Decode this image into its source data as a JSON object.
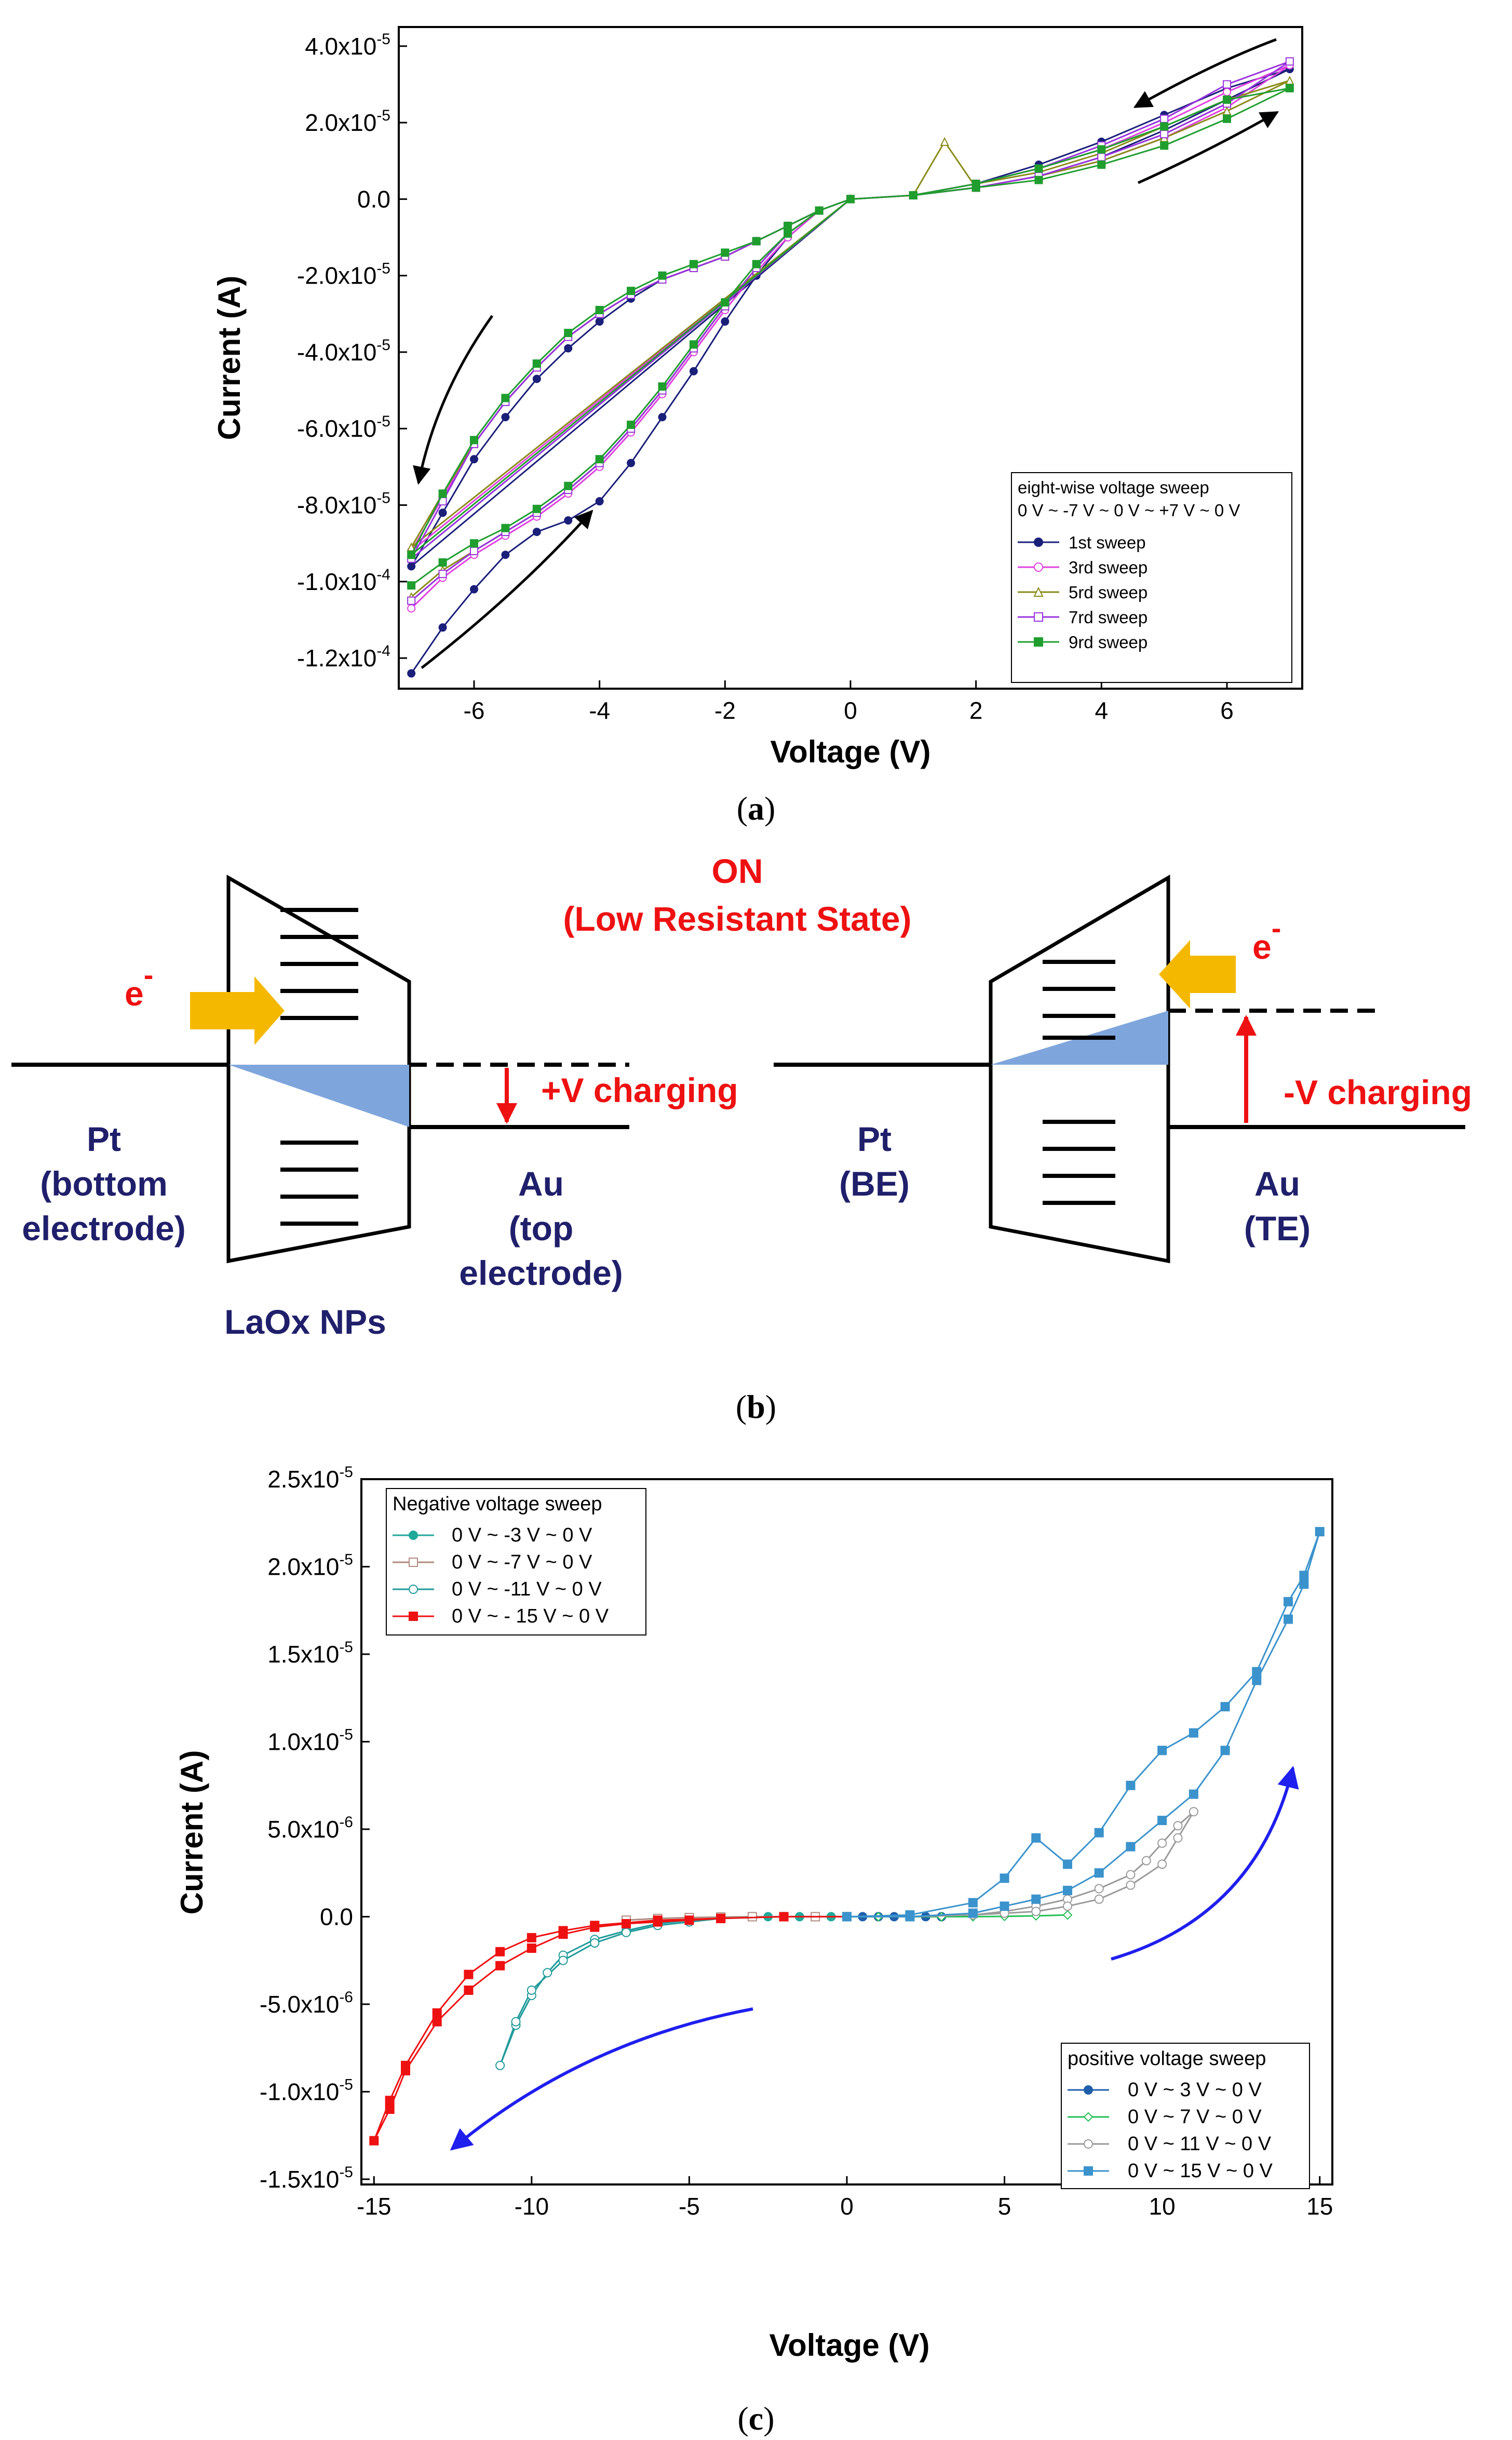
{
  "panel_a": {
    "label_open": "(",
    "label_letter": "a",
    "label_close": ")",
    "legend": {
      "title": "eight-wise voltage sweep",
      "subtitle": "0 V ~ -7 V ~ 0 V ~ +7 V ~ 0 V"
    }
  },
  "panel_b": {
    "label_open": "(",
    "label_letter": "b",
    "label_close": ")",
    "on_line1": "ON",
    "on_line2": "(Low Resistant State)",
    "electron": "e",
    "electron_sup": "-",
    "left": {
      "pt": "Pt",
      "pt_line2": "(bottom",
      "pt_line3": "electrode)",
      "au": "Au",
      "au_line2": "(top",
      "au_line3": "electrode)",
      "charging": "+V charging",
      "nps": "LaOx NPs"
    },
    "right": {
      "pt": "Pt",
      "pt_line2": "(BE)",
      "au": "Au",
      "au_line2": "(TE)",
      "charging": "-V charging"
    },
    "colors": {
      "arrow": "#F5B800",
      "fill": "#7FA6DC",
      "red": "#EE1111",
      "navy": "#1F1F6B"
    }
  },
  "panel_c": {
    "label_open": "(",
    "label_letter": "c",
    "label_close": ")",
    "legend_neg_title": "Negative voltage sweep",
    "legend_pos_title": "positive voltage sweep"
  },
  "chart_data": [
    {
      "type": "line",
      "title": "",
      "xlabel": "Voltage (V)",
      "ylabel": "Current (A)",
      "xlim": [
        -7.2,
        7.2
      ],
      "ylim": [
        -0.000128,
        4.5e-05
      ],
      "xticks": [
        -6,
        -4,
        -2,
        0,
        2,
        4,
        6
      ],
      "xtick_labels": [
        "-6",
        "-4",
        "-2",
        "0",
        "2",
        "4",
        "6"
      ],
      "yticks": [
        4e-05,
        2e-05,
        0,
        -2e-05,
        -4e-05,
        -6e-05,
        -8e-05,
        -0.0001,
        -0.00012
      ],
      "ytick_labels": [
        {
          "base": "4.0x10",
          "exp": "-5"
        },
        {
          "base": "2.0x10",
          "exp": "-5"
        },
        {
          "base": "0.0",
          "exp": ""
        },
        {
          "base": "-2.0x10",
          "exp": "-5"
        },
        {
          "base": "-4.0x10",
          "exp": "-5"
        },
        {
          "base": "-6.0x10",
          "exp": "-5"
        },
        {
          "base": "-8.0x10",
          "exp": "-5"
        },
        {
          "base": "-1.0x10",
          "exp": "-4"
        },
        {
          "base": "-1.2x10",
          "exp": "-4"
        }
      ],
      "legend_position": "bottom-right",
      "series": [
        {
          "name": "1st sweep",
          "color": "#1A1F7A",
          "marker": "filled-circle",
          "x": [
            -7,
            -6.5,
            -6,
            -5.5,
            -5,
            -4.5,
            -4,
            -3.5,
            -3,
            -2.5,
            -2,
            -1.5,
            -1,
            -0.5,
            0,
            -0.5,
            -1,
            -1.5,
            -2,
            -2.5,
            -3,
            -3.5,
            -4,
            -4.5,
            -5,
            -5.5,
            -6,
            -6.5,
            -7,
            0,
            1,
            2,
            3,
            4,
            5,
            6,
            7,
            6,
            5,
            4,
            3,
            2,
            1,
            0
          ],
          "y": [
            -0.000124,
            -0.000112,
            -0.000102,
            -9.3e-05,
            -8.7e-05,
            -8.4e-05,
            -7.9e-05,
            -6.9e-05,
            -5.7e-05,
            -4.5e-05,
            -3.2e-05,
            -2e-05,
            -1e-05,
            -3e-06,
            0,
            -3e-06,
            -7e-06,
            -1.1e-05,
            -1.5e-05,
            -1.8e-05,
            -2.1e-05,
            -2.6e-05,
            -3.2e-05,
            -3.9e-05,
            -4.7e-05,
            -5.7e-05,
            -6.8e-05,
            -8.2e-05,
            -9.6e-05,
            0,
            1e-06,
            3e-06,
            6e-06,
            1.1e-05,
            1.8e-05,
            2.6e-05,
            3.4e-05,
            2.9e-05,
            2.2e-05,
            1.5e-05,
            9e-06,
            4e-06,
            1e-06,
            0
          ]
        },
        {
          "name": "3rd sweep",
          "color": "#E040E0",
          "marker": "open-circle",
          "x": [
            -7,
            -6.5,
            -6,
            -5.5,
            -5,
            -4.5,
            -4,
            -3.5,
            -3,
            -2.5,
            -2,
            -1.5,
            -1,
            -0.5,
            0,
            -0.5,
            -1,
            -1.5,
            -2,
            -2.5,
            -3,
            -3.5,
            -4,
            -4.5,
            -5,
            -5.5,
            -6,
            -6.5,
            -7,
            0,
            1,
            2,
            3,
            4,
            5,
            6,
            7,
            6,
            5,
            4,
            3,
            2,
            1,
            0
          ],
          "y": [
            -0.000107,
            -9.9e-05,
            -9.3e-05,
            -8.8e-05,
            -8.3e-05,
            -7.7e-05,
            -7e-05,
            -6.1e-05,
            -5.1e-05,
            -4e-05,
            -2.9e-05,
            -1.9e-05,
            -1e-05,
            -3e-06,
            0,
            -3e-06,
            -7e-06,
            -1.1e-05,
            -1.5e-05,
            -1.8e-05,
            -2.1e-05,
            -2.5e-05,
            -3e-05,
            -3.6e-05,
            -4.4e-05,
            -5.3e-05,
            -6.4e-05,
            -7.8e-05,
            -9.2e-05,
            0,
            1e-06,
            3e-06,
            6e-06,
            1e-05,
            1.6e-05,
            2.4e-05,
            3.5e-05,
            2.8e-05,
            2e-05,
            1.3e-05,
            8e-06,
            4e-06,
            1e-06,
            0
          ]
        },
        {
          "name": "5rd sweep",
          "color": "#8B8B1A",
          "marker": "open-triangle",
          "x": [
            -7,
            -6.5,
            -6,
            -5.5,
            -5,
            -4.5,
            -4,
            -3.5,
            -3,
            -2.5,
            -2,
            -1.5,
            -1,
            -0.5,
            0,
            -0.5,
            -1,
            -1.5,
            -2,
            -2.5,
            -3,
            -3.5,
            -4,
            -4.5,
            -5,
            -5.5,
            -6,
            -6.5,
            -7,
            0,
            1,
            1.5,
            2,
            3,
            4,
            5,
            6,
            7,
            6,
            5,
            4,
            3,
            2,
            1,
            0
          ],
          "y": [
            -0.000104,
            -9.7e-05,
            -9.2e-05,
            -8.7e-05,
            -8.2e-05,
            -7.6e-05,
            -6.9e-05,
            -6e-05,
            -5e-05,
            -3.9e-05,
            -2.8e-05,
            -1.8e-05,
            -9e-06,
            -3e-06,
            0,
            -3e-06,
            -7e-06,
            -1.1e-05,
            -1.5e-05,
            -1.8e-05,
            -2.1e-05,
            -2.5e-05,
            -3e-05,
            -3.6e-05,
            -4.4e-05,
            -5.3e-05,
            -6.4e-05,
            -7.7e-05,
            -9.1e-05,
            0,
            1e-06,
            1.5e-05,
            3e-06,
            6e-06,
            1e-05,
            1.6e-05,
            2.3e-05,
            3.1e-05,
            2.6e-05,
            1.9e-05,
            1.2e-05,
            7e-06,
            4e-06,
            1e-06,
            0
          ]
        },
        {
          "name": "7rd sweep",
          "color": "#9933DD",
          "marker": "open-square",
          "x": [
            -7,
            -6.5,
            -6,
            -5.5,
            -5,
            -4.5,
            -4,
            -3.5,
            -3,
            -2.5,
            -2,
            -1.5,
            -1,
            -0.5,
            0,
            -0.5,
            -1,
            -1.5,
            -2,
            -2.5,
            -3,
            -3.5,
            -4,
            -4.5,
            -5,
            -5.5,
            -6,
            -6.5,
            -7,
            0,
            1,
            2,
            3,
            4,
            5,
            6,
            7,
            6,
            5,
            4,
            3,
            2,
            1,
            0
          ],
          "y": [
            -0.000105,
            -9.8e-05,
            -9.2e-05,
            -8.7e-05,
            -8.2e-05,
            -7.6e-05,
            -6.9e-05,
            -6e-05,
            -5e-05,
            -3.9e-05,
            -2.8e-05,
            -1.8e-05,
            -9e-06,
            -3e-06,
            0,
            -3e-06,
            -7e-06,
            -1.1e-05,
            -1.5e-05,
            -1.8e-05,
            -2.1e-05,
            -2.5e-05,
            -3e-05,
            -3.6e-05,
            -4.4e-05,
            -5.3e-05,
            -6.4e-05,
            -7.9e-05,
            -9.4e-05,
            0,
            1e-06,
            3e-06,
            6e-06,
            1.1e-05,
            1.7e-05,
            2.5e-05,
            3.6e-05,
            3e-05,
            2.1e-05,
            1.4e-05,
            8e-06,
            4e-06,
            1e-06,
            0
          ]
        },
        {
          "name": "9rd sweep",
          "color": "#1F9E2E",
          "marker": "filled-square",
          "x": [
            -7,
            -6.5,
            -6,
            -5.5,
            -5,
            -4.5,
            -4,
            -3.5,
            -3,
            -2.5,
            -2,
            -1.5,
            -1,
            -0.5,
            0,
            -0.5,
            -1,
            -1.5,
            -2,
            -2.5,
            -3,
            -3.5,
            -4,
            -4.5,
            -5,
            -5.5,
            -6,
            -6.5,
            -7,
            0,
            1,
            2,
            3,
            4,
            5,
            6,
            7,
            6,
            5,
            4,
            3,
            2,
            1,
            0
          ],
          "y": [
            -0.000101,
            -9.5e-05,
            -9e-05,
            -8.6e-05,
            -8.1e-05,
            -7.5e-05,
            -6.8e-05,
            -5.9e-05,
            -4.9e-05,
            -3.8e-05,
            -2.7e-05,
            -1.7e-05,
            -9e-06,
            -3e-06,
            0,
            -3e-06,
            -7e-06,
            -1.1e-05,
            -1.4e-05,
            -1.7e-05,
            -2e-05,
            -2.4e-05,
            -2.9e-05,
            -3.5e-05,
            -4.3e-05,
            -5.2e-05,
            -6.3e-05,
            -7.7e-05,
            -9.3e-05,
            0,
            1e-06,
            3e-06,
            5e-06,
            9e-06,
            1.4e-05,
            2.1e-05,
            2.9e-05,
            2.6e-05,
            1.9e-05,
            1.3e-05,
            8e-06,
            4e-06,
            1e-06,
            0
          ]
        }
      ]
    },
    {
      "type": "scatter",
      "title": "",
      "xlabel": "Voltage (V)",
      "ylabel": "Current (A)",
      "xlim": [
        -15.4,
        15.4
      ],
      "ylim": [
        -1.53e-05,
        2.5e-05
      ],
      "xticks": [
        -15,
        -10,
        -5,
        0,
        5,
        10,
        15
      ],
      "xtick_labels": [
        "-15",
        "-10",
        "-5",
        "0",
        "5",
        "10",
        "15"
      ],
      "yticks": [
        2.5e-05,
        2e-05,
        1.5e-05,
        1e-05,
        5e-06,
        0,
        -5e-06,
        -1e-05,
        -1.5e-05
      ],
      "ytick_labels": [
        {
          "base": "2.5x10",
          "exp": "-5"
        },
        {
          "base": "2.0x10",
          "exp": "-5"
        },
        {
          "base": "1.5x10",
          "exp": "-5"
        },
        {
          "base": "1.0x10",
          "exp": "-5"
        },
        {
          "base": "5.0x10",
          "exp": "-6"
        },
        {
          "base": "0.0",
          "exp": ""
        },
        {
          "base": "-5.0x10",
          "exp": "-6"
        },
        {
          "base": "-1.0x10",
          "exp": "-5"
        },
        {
          "base": "-1.5x10",
          "exp": "-5"
        }
      ],
      "legend_negative_position": "top-left",
      "legend_positive_position": "bottom-right",
      "series": [
        {
          "name": "0 V ~ -3 V ~ 0 V",
          "group": "negative",
          "color": "#1FA99A",
          "marker": "filled-circle",
          "x": [
            0,
            -0.5,
            -1,
            -1.5,
            -2,
            -2.5,
            -3
          ],
          "y": [
            0,
            0,
            0,
            0,
            0,
            0,
            0
          ]
        },
        {
          "name": "0 V ~ -7 V ~ 0 V",
          "group": "negative",
          "color": "#B08A80",
          "marker": "open-square",
          "x": [
            0,
            -1,
            -2,
            -3,
            -4,
            -5,
            -6,
            -7
          ],
          "y": [
            0,
            0,
            0,
            0,
            -2e-08,
            -5e-08,
            -1e-07,
            -2e-07
          ]
        },
        {
          "name": "0 V ~ -11 V ~ 0 V",
          "group": "negative",
          "color": "#1F9A9A",
          "marker": "open-circle",
          "x": [
            0,
            -2,
            -4,
            -5,
            -6,
            -7,
            -8,
            -9,
            -9.5,
            -10,
            -10.5,
            -11,
            -10.5,
            -10,
            -9,
            -8,
            -7,
            -6,
            -5,
            -4,
            -2,
            0
          ],
          "y": [
            0,
            0,
            -1e-07,
            -2e-07,
            -4e-07,
            -8e-07,
            -1.3e-06,
            -2.2e-06,
            -3.2e-06,
            -4.5e-06,
            -6.2e-06,
            -8.5e-06,
            -6e-06,
            -4.2e-06,
            -2.5e-06,
            -1.5e-06,
            -9e-07,
            -5e-07,
            -3e-07,
            -1e-07,
            0,
            0
          ]
        },
        {
          "name": "0 V ~ - 15 V ~ 0 V",
          "group": "negative",
          "color": "#EE1111",
          "marker": "filled-square",
          "x": [
            0,
            -2,
            -4,
            -6,
            -8,
            -9,
            -10,
            -11,
            -12,
            -13,
            -14,
            -14.5,
            -15,
            -14.5,
            -14,
            -13,
            -12,
            -11,
            -10,
            -9,
            -8,
            -7,
            -6,
            -5,
            -4,
            -2,
            0
          ],
          "y": [
            0,
            0,
            -1e-07,
            -2e-07,
            -5e-07,
            -8e-07,
            -1.2e-06,
            -2e-06,
            -3.3e-06,
            -5.5e-06,
            -8.5e-06,
            -1.05e-05,
            -1.28e-05,
            -1.1e-05,
            -8.8e-06,
            -6e-06,
            -4.2e-06,
            -2.8e-06,
            -1.8e-06,
            -1e-06,
            -6e-07,
            -4e-07,
            -3e-07,
            -2e-07,
            -1e-07,
            0,
            0
          ]
        },
        {
          "name": "0 V ~ 3 V ~ 0 V",
          "group": "positive",
          "color": "#1F5FAA",
          "marker": "filled-circle",
          "x": [
            0,
            0.5,
            1,
            1.5,
            2,
            2.5,
            3
          ],
          "y": [
            0,
            0,
            0,
            0,
            0,
            0,
            0
          ]
        },
        {
          "name": "0 V ~ 7 V ~ 0 V",
          "group": "positive",
          "color": "#22C055",
          "marker": "open-diamond",
          "x": [
            0,
            1,
            2,
            3,
            4,
            5,
            6,
            7
          ],
          "y": [
            0,
            0,
            0,
            0,
            0,
            2e-08,
            5e-08,
            1e-07
          ]
        },
        {
          "name": "0 V ~ 11 V ~ 0 V",
          "group": "positive",
          "color": "#9A9A9A",
          "marker": "open-circle",
          "x": [
            0,
            2,
            4,
            5,
            6,
            7,
            8,
            9,
            9.5,
            10,
            10.5,
            11,
            10.5,
            10,
            9,
            8,
            7,
            6,
            5,
            4,
            2,
            0
          ],
          "y": [
            0,
            0,
            1e-07,
            3e-07,
            6e-07,
            1e-06,
            1.6e-06,
            2.4e-06,
            3.2e-06,
            4.2e-06,
            5.2e-06,
            6e-06,
            4.5e-06,
            3e-06,
            1.8e-06,
            1e-06,
            6e-07,
            3e-07,
            2e-07,
            1e-07,
            0,
            0
          ]
        },
        {
          "name": "0 V ~ 15 V ~ 0 V",
          "group": "positive",
          "color": "#3A93CC",
          "marker": "filled-square",
          "x": [
            0,
            2,
            4,
            5,
            6,
            7,
            8,
            9,
            10,
            11,
            12,
            13,
            14,
            14.5,
            15,
            14.5,
            14,
            13,
            12,
            11,
            10,
            9,
            8,
            7,
            6,
            5,
            4,
            2,
            0
          ],
          "y": [
            0,
            0,
            2e-07,
            6e-07,
            1e-06,
            1.5e-06,
            2.5e-06,
            4e-06,
            5.5e-06,
            7e-06,
            9.5e-06,
            1.35e-05,
            1.7e-05,
            1.9e-05,
            2.2e-05,
            1.95e-05,
            1.8e-05,
            1.4e-05,
            1.2e-05,
            1.05e-05,
            9.5e-06,
            7.5e-06,
            4.8e-06,
            3e-06,
            4.5e-06,
            2.2e-06,
            8e-07,
            1e-07,
            0
          ]
        }
      ]
    }
  ]
}
